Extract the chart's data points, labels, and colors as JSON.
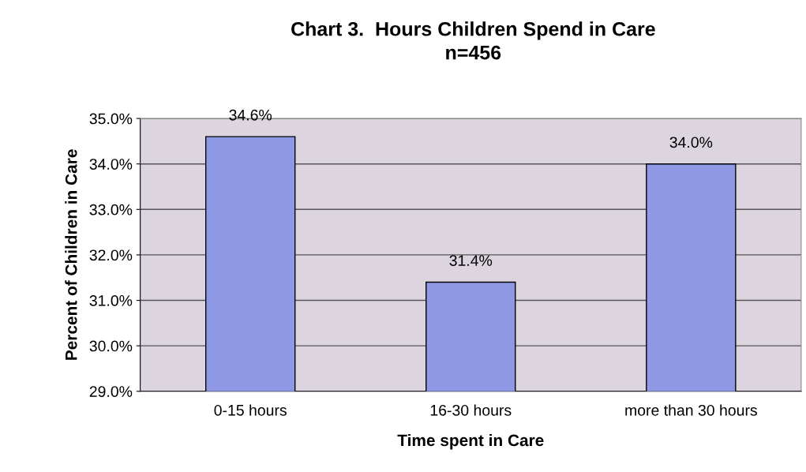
{
  "chart_data": {
    "type": "bar",
    "title": "Chart 3.  Hours Children Spend in Care",
    "subtitle": "n=456",
    "xlabel": "Time spent in Care",
    "ylabel": "Percent of Children in Care",
    "categories": [
      "0-15 hours",
      "16-30 hours",
      "more than 30 hours"
    ],
    "values": [
      34.6,
      31.4,
      34.0
    ],
    "color": "#8f98e4",
    "value_labels": [
      "34.6%",
      "31.4%",
      "34.0%"
    ],
    "ylim": [
      29,
      35
    ],
    "yticks": [
      {
        "value": 29,
        "label": "29.0%"
      },
      {
        "value": 30,
        "label": "30.0%"
      },
      {
        "value": 31,
        "label": "31.0%"
      },
      {
        "value": 32,
        "label": "32.0%"
      },
      {
        "value": 33,
        "label": "33.0%"
      },
      {
        "value": 34,
        "label": "34.0%"
      },
      {
        "value": 35,
        "label": "35.0%"
      }
    ],
    "grid": "y",
    "legend": false
  }
}
